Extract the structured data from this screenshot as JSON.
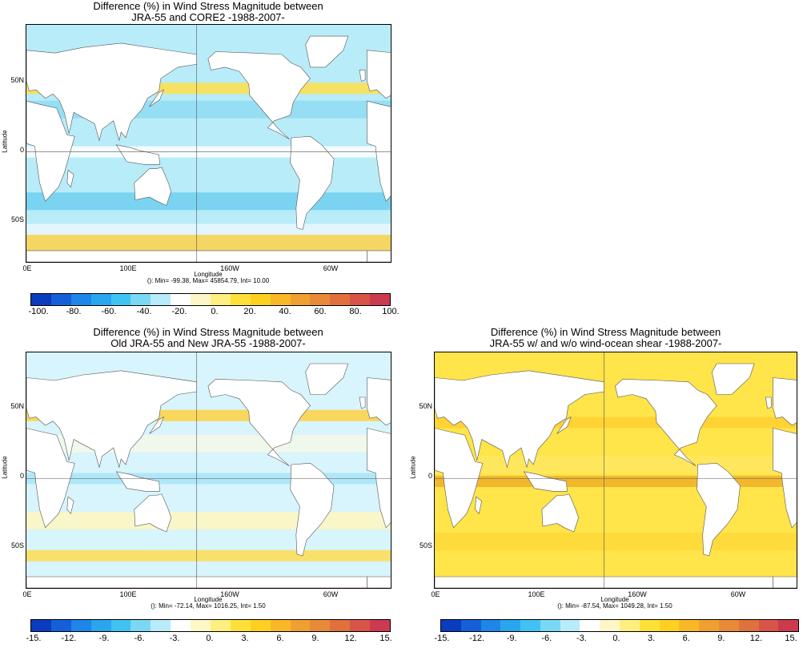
{
  "panels": [
    {
      "id": "core2",
      "title1": "Difference (%) in Wind Stress Magnitude between",
      "title2": "JRA-55 and CORE2  -1988-2007-",
      "ylabel": "Latitude",
      "xlabel": "Longitude",
      "stats": "(): Min= -99.38, Max= 45854.79, Int= 10.00",
      "yticks": [
        "50N",
        "0",
        "50S"
      ],
      "xticks": [
        "0E",
        "100E",
        "160W",
        "60W"
      ],
      "cbar_labels": [
        "-100.",
        "-80.",
        "-60.",
        "-40.",
        "-20.",
        "0.",
        "20.",
        "40.",
        "60.",
        "80.",
        "100."
      ],
      "ocean_color": "#b8ecf8",
      "bands": [
        {
          "lat": 45,
          "color": "#ffe04a"
        },
        {
          "lat": 30,
          "color": "#8fdcf2"
        },
        {
          "lat": 0,
          "color": "#ffffff"
        },
        {
          "lat": -35,
          "color": "#6fd0f0"
        },
        {
          "lat": -55,
          "color": "#e8f8ff"
        },
        {
          "lat": -65,
          "color": "#ffd24a"
        }
      ]
    },
    {
      "id": "oldnew",
      "title1": "Difference (%) in Wind Stress Magnitude between",
      "title2": "Old JRA-55 and New JRA-55  -1988-2007-",
      "ylabel": "Latitude",
      "xlabel": "Longitude",
      "stats": "(): Min= -72.14, Max= 1016.25, Int= 1.50",
      "yticks": [
        "50N",
        "0",
        "50S"
      ],
      "xticks": [
        "0E",
        "100E",
        "160W",
        "60W"
      ],
      "cbar_labels": [
        "-15.",
        "-12.",
        "-9.",
        "-6.",
        "-3.",
        "0.",
        "3.",
        "6.",
        "9.",
        "12.",
        "15."
      ],
      "ocean_color": "#d8f4fc",
      "bands": [
        {
          "lat": 45,
          "color": "#ffd040"
        },
        {
          "lat": 25,
          "color": "#f4f8e8"
        },
        {
          "lat": 0,
          "color": "#a8e4f8"
        },
        {
          "lat": -30,
          "color": "#fff6c0"
        },
        {
          "lat": -55,
          "color": "#ffdc50"
        }
      ]
    },
    {
      "id": "shear",
      "title1": "Difference (%) in Wind Stress Magnitude between",
      "title2": "JRA-55 w/ and w/o wind-ocean shear  -1988-2007-",
      "ylabel": "Latitude",
      "xlabel": "Longitude",
      "stats": "(): Min= -87.54, Max= 1049.28, Int= 1.50",
      "yticks": [
        "50N",
        "0",
        "50S"
      ],
      "xticks": [
        "0E",
        "100E",
        "160W",
        "60W"
      ],
      "cbar_labels": [
        "-15.",
        "-12.",
        "-9.",
        "-6.",
        "-3.",
        "0.",
        "3.",
        "6.",
        "9.",
        "12.",
        "15."
      ],
      "ocean_color": "#ffe44a",
      "bands": [
        {
          "lat": 40,
          "color": "#ffd030"
        },
        {
          "lat": 10,
          "color": "#ffe860"
        },
        {
          "lat": -2,
          "color": "#f0b028"
        },
        {
          "lat": -45,
          "color": "#ffd838"
        }
      ]
    }
  ],
  "palette": [
    "#0b3bbf",
    "#1560d8",
    "#1e86e8",
    "#2aa6ee",
    "#40c2f2",
    "#7ad8f4",
    "#b8ecfa",
    "#ffffff",
    "#fff6c8",
    "#ffee80",
    "#ffe038",
    "#ffd020",
    "#f8b828",
    "#f0a030",
    "#e88a38",
    "#e0703c",
    "#d85448",
    "#cc3a50"
  ]
}
